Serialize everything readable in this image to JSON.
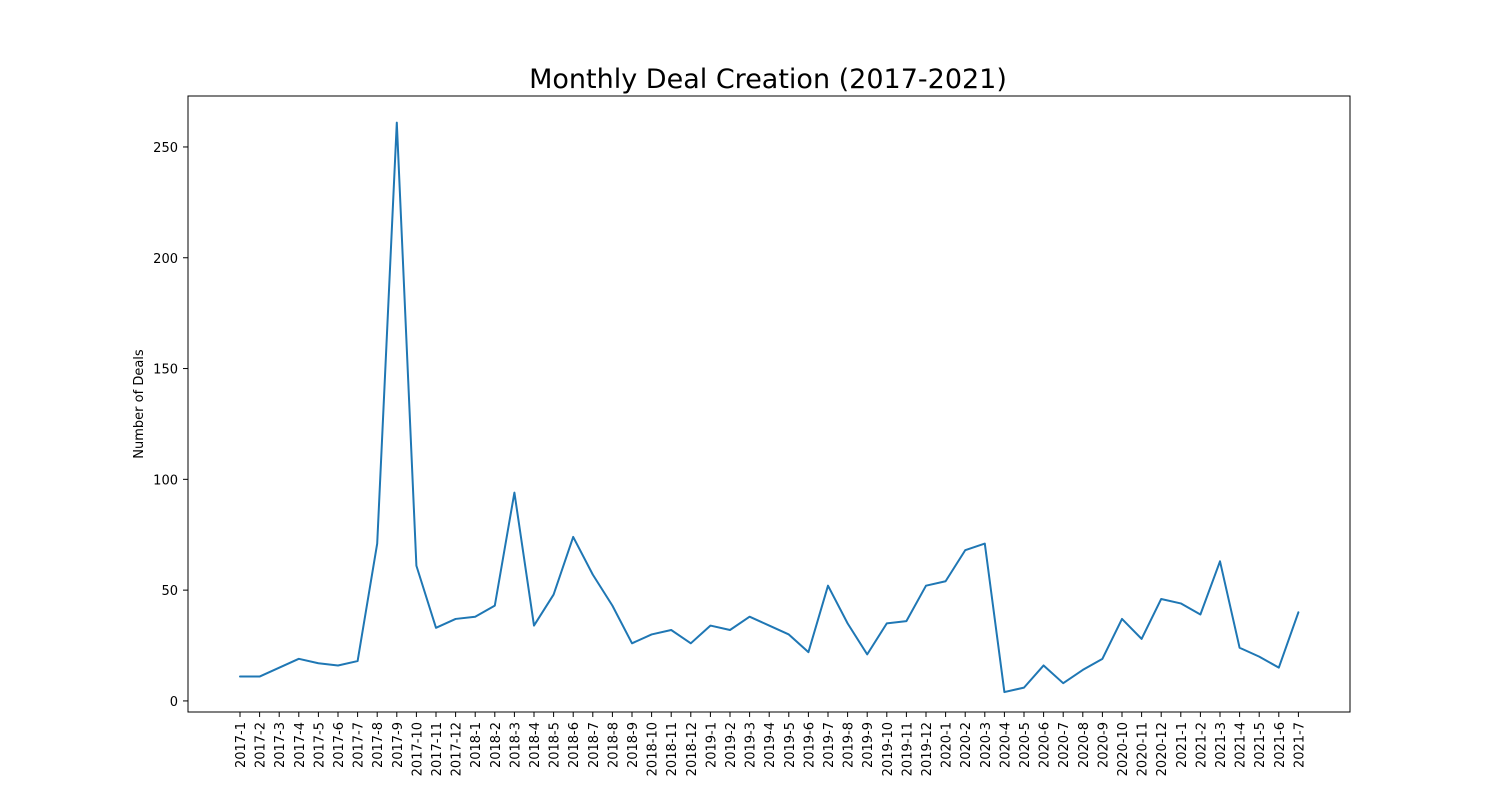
{
  "chart_data": {
    "type": "line",
    "title": "Monthly Deal Creation (2017-2021)",
    "xlabel": "",
    "ylabel": "Number of Deals",
    "ylim": [
      -5,
      273
    ],
    "yticks": [
      0,
      50,
      100,
      150,
      200,
      250
    ],
    "grid": false,
    "line_color": "#1f77b4",
    "categories": [
      "2017-1",
      "2017-2",
      "2017-3",
      "2017-4",
      "2017-5",
      "2017-6",
      "2017-7",
      "2017-8",
      "2017-9",
      "2017-10",
      "2017-11",
      "2017-12",
      "2018-1",
      "2018-2",
      "2018-3",
      "2018-4",
      "2018-5",
      "2018-6",
      "2018-7",
      "2018-8",
      "2018-9",
      "2018-10",
      "2018-11",
      "2018-12",
      "2019-1",
      "2019-2",
      "2019-3",
      "2019-4",
      "2019-5",
      "2019-6",
      "2019-7",
      "2019-8",
      "2019-9",
      "2019-10",
      "2019-11",
      "2019-12",
      "2020-1",
      "2020-2",
      "2020-3",
      "2020-4",
      "2020-5",
      "2020-6",
      "2020-7",
      "2020-8",
      "2020-9",
      "2020-10",
      "2020-11",
      "2020-12",
      "2021-1",
      "2021-2",
      "2021-3",
      "2021-4",
      "2021-5",
      "2021-6",
      "2021-7"
    ],
    "values": [
      11,
      11,
      15,
      19,
      17,
      16,
      18,
      71,
      261,
      61,
      33,
      37,
      38,
      43,
      94,
      34,
      48,
      74,
      57,
      43,
      26,
      30,
      32,
      26,
      34,
      32,
      38,
      34,
      30,
      22,
      52,
      35,
      21,
      35,
      36,
      52,
      54,
      68,
      71,
      4,
      6,
      16,
      8,
      14,
      19,
      37,
      28,
      46,
      44,
      39,
      63,
      24,
      20,
      15,
      40
    ]
  }
}
